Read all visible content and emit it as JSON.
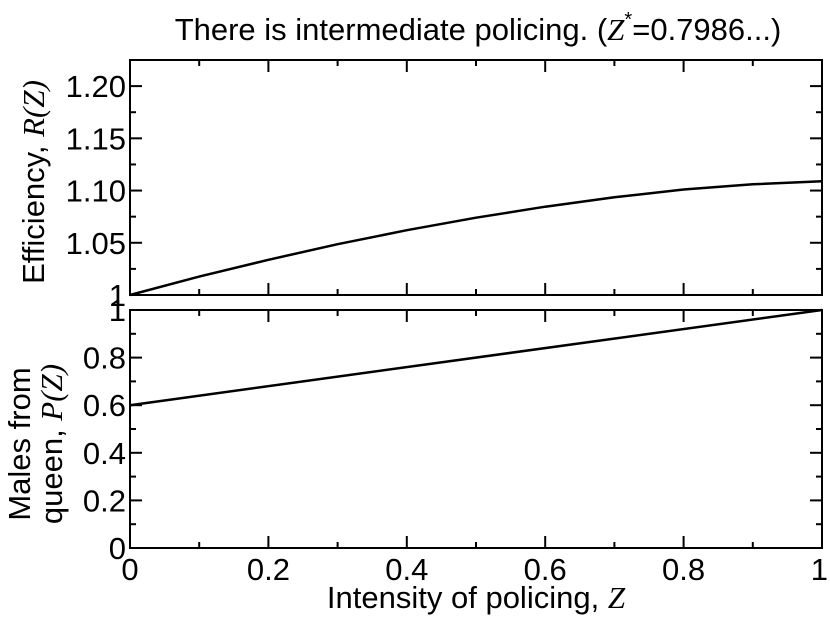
{
  "title": {
    "text": "There is intermediate policing. (",
    "var": "Z",
    "star": "*",
    "value": "=0.7986...)"
  },
  "chart_data": [
    {
      "type": "line",
      "ylabel_text": "Efficiency, ",
      "ylabel_var": "R(Z)",
      "xlim": [
        0,
        1
      ],
      "ylim": [
        1.0,
        1.225
      ],
      "yticks": [
        1.0,
        1.05,
        1.1,
        1.15,
        1.2
      ],
      "ytick_labels": [
        "1",
        "1.05",
        "1.10",
        "1.15",
        "1.20"
      ],
      "series": [
        {
          "x": [
            0,
            0.1,
            0.2,
            0.3,
            0.4,
            0.5,
            0.6,
            0.7,
            0.8,
            0.9,
            1.0
          ],
          "y": [
            1.0,
            1.0176,
            1.0337,
            1.0486,
            1.062,
            1.074,
            1.0845,
            1.0935,
            1.101,
            1.106,
            1.109
          ]
        }
      ]
    },
    {
      "type": "line",
      "ylabel_line1": "Males from",
      "ylabel_line2": "queen, ",
      "ylabel_var": "P(Z)",
      "xlabel_text": "Intensity of policing, ",
      "xlabel_var": "Z",
      "xlim": [
        0,
        1
      ],
      "ylim": [
        0,
        1
      ],
      "xticks": [
        0,
        0.2,
        0.4,
        0.6,
        0.8,
        1.0
      ],
      "xtick_labels": [
        "0",
        "0.2",
        "0.4",
        "0.6",
        "0.8",
        "1"
      ],
      "yticks": [
        0,
        0.2,
        0.4,
        0.6,
        0.8,
        1.0
      ],
      "ytick_labels": [
        "0",
        "0.2",
        "0.4",
        "0.6",
        "0.8",
        "1"
      ],
      "series": [
        {
          "x": [
            0,
            1
          ],
          "y": [
            0.6,
            1.0
          ]
        }
      ]
    }
  ]
}
